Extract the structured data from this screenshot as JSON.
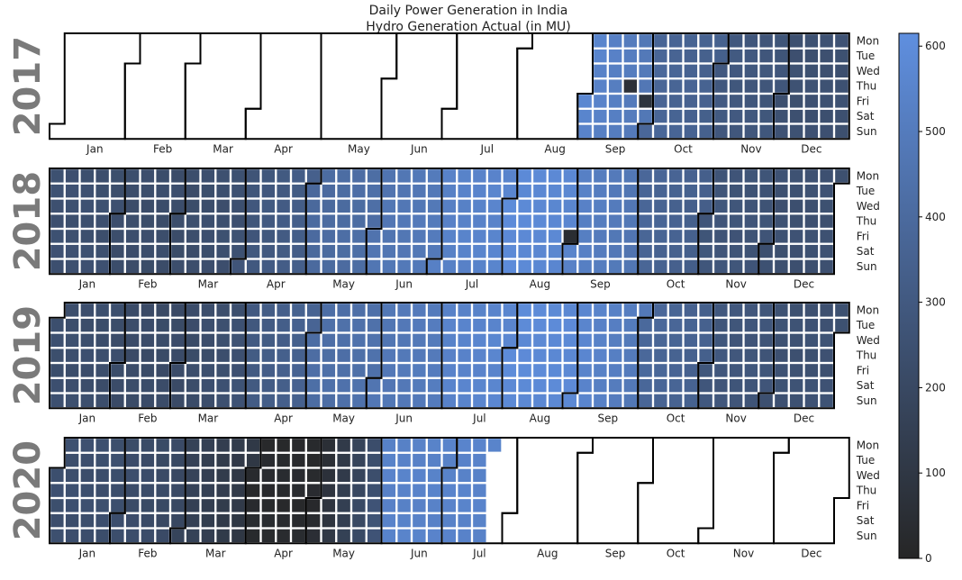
{
  "chart_data": {
    "type": "heatmap",
    "title": "Daily Power Generation in India",
    "subtitle": "Hydro Generation Actual (in MU)",
    "weekday_labels": [
      "Mon",
      "Tue",
      "Wed",
      "Thu",
      "Fri",
      "Sat",
      "Sun"
    ],
    "month_labels": [
      "Jan",
      "Feb",
      "Mar",
      "Apr",
      "May",
      "Jun",
      "Jul",
      "Aug",
      "Sep",
      "Oct",
      "Nov",
      "Dec"
    ],
    "colorbar": {
      "ticks": [
        0,
        100,
        200,
        300,
        400,
        500,
        600
      ],
      "range": [
        0,
        615
      ],
      "low_color": "#262626",
      "high_color": "#5f8fdf"
    },
    "data_start": "2017-09-01",
    "data_end": "2020-07-20",
    "years": [
      {
        "year": 2017,
        "monthly_mean_mu": [
          null,
          null,
          null,
          null,
          null,
          null,
          null,
          null,
          560,
          380,
          300,
          250
        ]
      },
      {
        "year": 2018,
        "monthly_mean_mu": [
          250,
          230,
          225,
          275,
          395,
          460,
          530,
          590,
          540,
          380,
          280,
          250
        ]
      },
      {
        "year": 2019,
        "monthly_mean_mu": [
          240,
          220,
          215,
          300,
          420,
          470,
          540,
          590,
          570,
          390,
          290,
          255
        ]
      },
      {
        "year": 2020,
        "monthly_mean_mu": [
          240,
          230,
          170,
          25,
          25,
          540,
          545,
          null,
          null,
          null,
          null,
          null
        ]
      }
    ],
    "annotations": [
      {
        "date": "2017-09-21",
        "value_mu": 60
      },
      {
        "date": "2017-09-29",
        "value_mu": 80
      },
      {
        "date": "2018-08-31",
        "value_mu": 40
      }
    ]
  }
}
